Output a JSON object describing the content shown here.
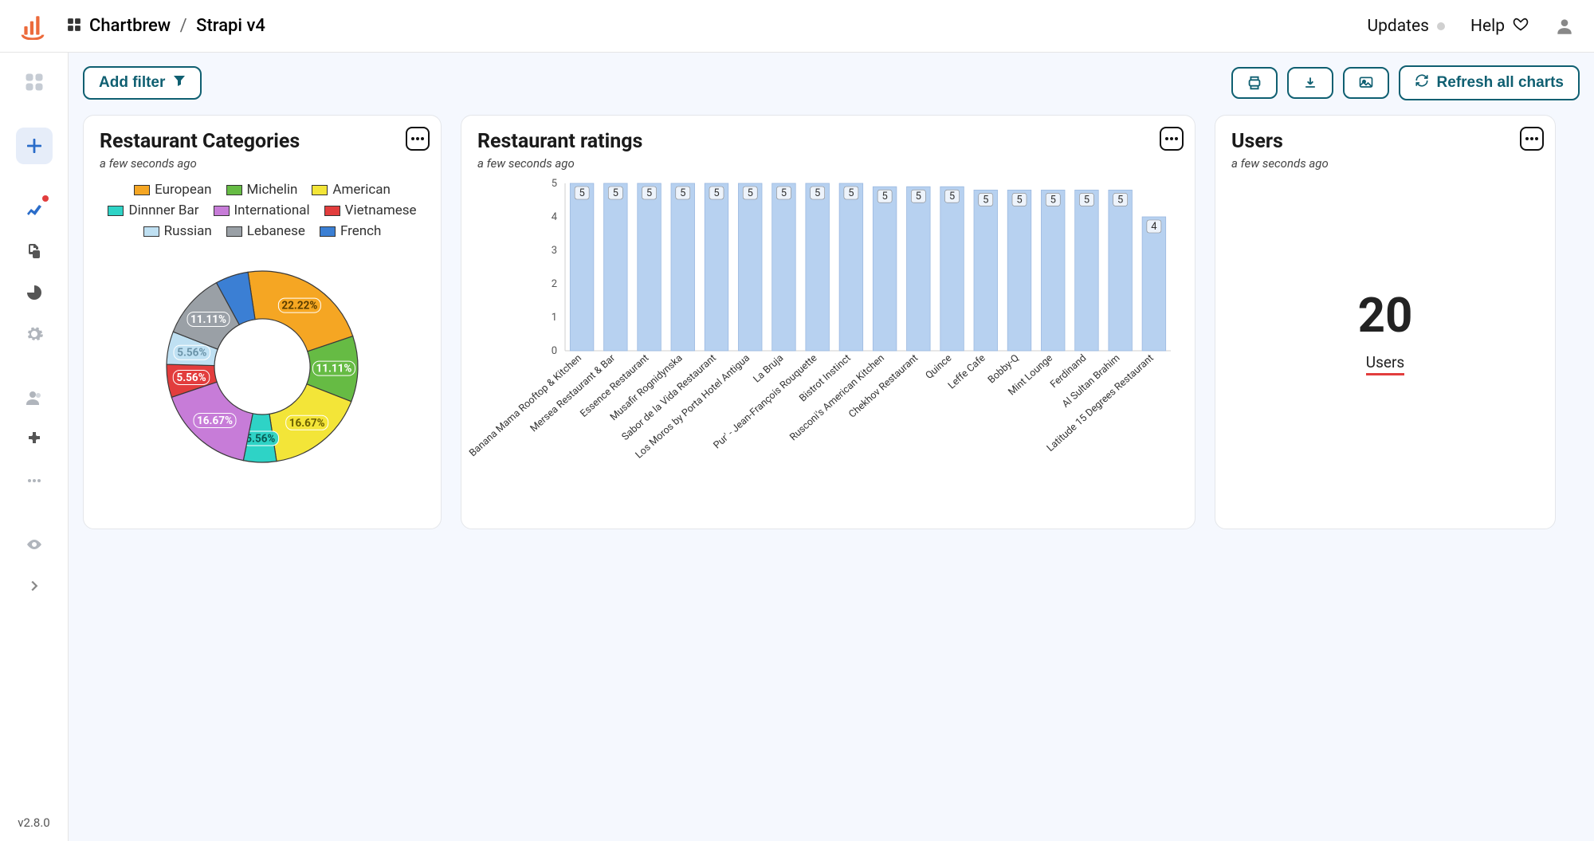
{
  "header": {
    "breadcrumb_root": "Chartbrew",
    "breadcrumb_leaf": "Strapi v4",
    "updates_label": "Updates",
    "help_label": "Help"
  },
  "toolbar": {
    "add_filter_label": "Add filter",
    "refresh_label": "Refresh all charts"
  },
  "version": "v2.8.0",
  "colors": {
    "teal_accent": "#0f5f71",
    "page_bg": "#f5f8fe",
    "card_border": "#e4e6ea"
  },
  "chart_categories": {
    "title": "Restaurant Categories",
    "updated": "a few seconds ago",
    "type": "doughnut",
    "inner_radius_pct": 0.5,
    "legend_position": "top",
    "data": [
      {
        "label": "European",
        "value": 22.22,
        "color": "#f5a623",
        "text_color": "#5a3d00"
      },
      {
        "label": "Michelin",
        "value": 11.11,
        "color": "#66bb44",
        "text_color": "#ffffff"
      },
      {
        "label": "American",
        "value": 16.67,
        "color": "#f3e538",
        "text_color": "#6b6000"
      },
      {
        "label": "Dinnner Bar",
        "value": 5.56,
        "color": "#2ed3c6",
        "text_color": "#0a5a54"
      },
      {
        "label": "International",
        "value": 16.67,
        "color": "#c77cd8",
        "text_color": "#ffffff"
      },
      {
        "label": "Vietnamese",
        "value": 5.56,
        "color": "#e23d3d",
        "text_color": "#ffffff"
      },
      {
        "label": "Russian",
        "value": 5.56,
        "color": "#bfe0f2",
        "text_color": "#6b94a9"
      },
      {
        "label": "Lebanese",
        "value": 11.11,
        "color": "#9aa0a6",
        "text_color": "#ffffff"
      },
      {
        "label": "French",
        "value": 5.56,
        "color": "#3b7fd4",
        "text_color": "#ffffff",
        "hide_label": true
      }
    ]
  },
  "chart_ratings": {
    "title": "Restaurant ratings",
    "updated": "a few seconds ago",
    "type": "bar",
    "y": {
      "min": 0,
      "max": 5,
      "ticks": [
        0,
        1,
        2,
        3,
        4,
        5
      ]
    },
    "bar_fill": "#b7d1f0",
    "bar_stroke": "#9cb9e0",
    "background": "#ffffff",
    "data": [
      {
        "label": "Banana Mama Rooftop & Kitchen",
        "value": 5
      },
      {
        "label": "Mersea Restaurant & Bar",
        "value": 5
      },
      {
        "label": "Essence Restaurant",
        "value": 5
      },
      {
        "label": "Musafir Rognidynska",
        "value": 5
      },
      {
        "label": "Sabor de la Vida Restaurant",
        "value": 5
      },
      {
        "label": "Los Moros by Porta Hotel Antigua",
        "value": 5
      },
      {
        "label": "La Bruja",
        "value": 5
      },
      {
        "label": "Pur' - Jean-François Rouquette",
        "value": 5
      },
      {
        "label": "Bistrot Instinct",
        "value": 5
      },
      {
        "label": "Rusconi's American Kitchen",
        "value": 4.9
      },
      {
        "label": "Chekhov Restaurant",
        "value": 4.9
      },
      {
        "label": "Quince",
        "value": 4.9
      },
      {
        "label": "Leffe Cafe",
        "value": 4.8
      },
      {
        "label": "Bobby-Q",
        "value": 4.8
      },
      {
        "label": "Mint Lounge",
        "value": 4.8
      },
      {
        "label": "Ferdinand",
        "value": 4.8
      },
      {
        "label": "Al Sultan Brahim",
        "value": 4.8
      },
      {
        "label": "Latitude 15 Degrees Restaurant",
        "value": 4
      }
    ]
  },
  "chart_users": {
    "title": "Users",
    "updated": "a few seconds ago",
    "type": "kpi",
    "value": "20",
    "label": "Users",
    "accent": "#e23d3d"
  }
}
